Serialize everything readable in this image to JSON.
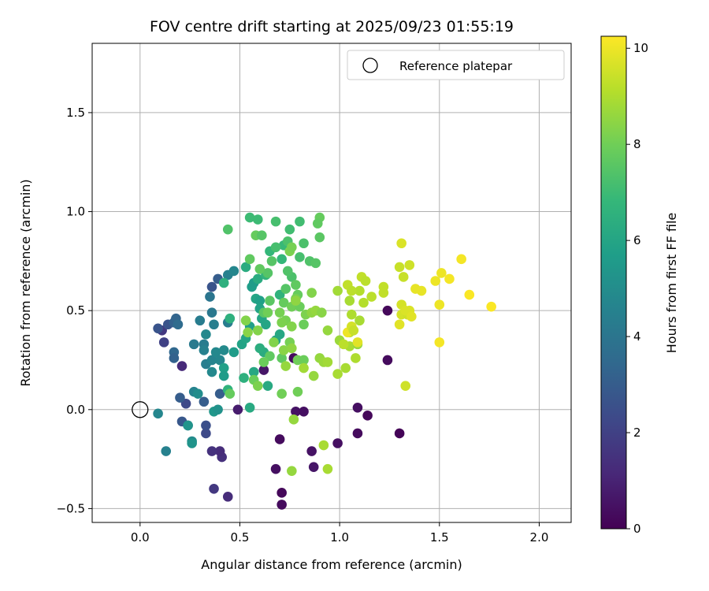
{
  "chart_data": {
    "type": "scatter",
    "title": "FOV centre drift starting at 2025/09/23 01:55:19",
    "xlabel": "Angular distance from reference (arcmin)",
    "ylabel": "Rotation from reference (arcmin)",
    "xlim": [
      -0.24,
      2.16
    ],
    "ylim": [
      -0.57,
      1.85
    ],
    "xticks": [
      0.0,
      0.5,
      1.0,
      1.5,
      2.0
    ],
    "xtick_labels": [
      "0.0",
      "0.5",
      "1.0",
      "1.5",
      "2.0"
    ],
    "yticks": [
      -0.5,
      0.0,
      0.5,
      1.0,
      1.5
    ],
    "ytick_labels": [
      "−0.5",
      "0.0",
      "0.5",
      "1.0",
      "1.5"
    ],
    "grid": true,
    "legend": {
      "position": "top-right",
      "entries": [
        "Reference platepar"
      ]
    },
    "reference_point": {
      "x": 0.0,
      "y": 0.0,
      "label": "Reference platepar"
    },
    "colorbar": {
      "label": "Hours from first FF file",
      "colormap": "viridis",
      "range": [
        0,
        10.25
      ],
      "ticks": [
        0,
        2,
        4,
        6,
        8,
        10
      ],
      "tick_labels": [
        "0",
        "2",
        "4",
        "6",
        "8",
        "10"
      ],
      "stops": [
        "#440154",
        "#482878",
        "#3e4989",
        "#31688e",
        "#26828e",
        "#1f9e89",
        "#35b779",
        "#6ece58",
        "#b5de2b",
        "#fde725"
      ]
    },
    "points": [
      [
        1.24,
        0.5,
        0.2
      ],
      [
        1.24,
        0.25,
        0.3
      ],
      [
        1.3,
        -0.12,
        0.1
      ],
      [
        1.14,
        -0.03,
        0.2
      ],
      [
        1.09,
        0.01,
        0.4
      ],
      [
        1.09,
        -0.12,
        0.3
      ],
      [
        0.99,
        -0.17,
        0.4
      ],
      [
        0.87,
        -0.29,
        0.6
      ],
      [
        0.86,
        -0.21,
        0.5
      ],
      [
        0.71,
        -0.42,
        0.2
      ],
      [
        0.71,
        -0.48,
        0.3
      ],
      [
        0.68,
        -0.3,
        0.4
      ],
      [
        0.7,
        -0.15,
        0.3
      ],
      [
        0.78,
        -0.01,
        0.5
      ],
      [
        0.82,
        -0.01,
        0.4
      ],
      [
        0.62,
        0.2,
        0.6
      ],
      [
        0.77,
        0.26,
        0.3
      ],
      [
        0.49,
        0.0,
        0.8
      ],
      [
        0.44,
        -0.44,
        1.3
      ],
      [
        0.41,
        -0.24,
        1.4
      ],
      [
        0.4,
        -0.21,
        1.3
      ],
      [
        0.36,
        -0.21,
        1.5
      ],
      [
        0.37,
        -0.4,
        1.7
      ],
      [
        0.21,
        0.22,
        1.2
      ],
      [
        0.11,
        0.4,
        1.7
      ],
      [
        0.12,
        0.34,
        2.0
      ],
      [
        0.33,
        -0.12,
        2.3
      ],
      [
        0.33,
        -0.08,
        2.5
      ],
      [
        0.24,
        -0.08,
        2.9
      ],
      [
        0.21,
        -0.06,
        2.8
      ],
      [
        0.23,
        0.03,
        2.3
      ],
      [
        0.2,
        0.06,
        3.0
      ],
      [
        0.32,
        0.04,
        3.0
      ],
      [
        0.4,
        0.08,
        3.0
      ],
      [
        0.36,
        0.62,
        2.7
      ],
      [
        0.39,
        0.66,
        3.0
      ],
      [
        0.09,
        0.41,
        2.7
      ],
      [
        0.14,
        0.43,
        2.7
      ],
      [
        0.17,
        0.44,
        3.2
      ],
      [
        0.18,
        0.46,
        3.3
      ],
      [
        0.19,
        0.43,
        3.6
      ],
      [
        0.17,
        0.29,
        3.4
      ],
      [
        0.17,
        0.26,
        3.2
      ],
      [
        0.27,
        0.33,
        4.2
      ],
      [
        0.32,
        0.33,
        4.3
      ],
      [
        0.32,
        0.3,
        4.5
      ],
      [
        0.33,
        0.23,
        4.4
      ],
      [
        0.36,
        0.25,
        4.6
      ],
      [
        0.3,
        0.45,
        4.3
      ],
      [
        0.36,
        0.49,
        4.1
      ],
      [
        0.35,
        0.57,
        4.0
      ],
      [
        0.37,
        0.43,
        4.4
      ],
      [
        0.36,
        0.19,
        4.8
      ],
      [
        0.38,
        0.29,
        4.8
      ],
      [
        0.33,
        0.38,
        4.8
      ],
      [
        0.4,
        0.25,
        4.7
      ],
      [
        0.42,
        0.3,
        4.9
      ],
      [
        0.44,
        0.44,
        4.3
      ],
      [
        0.44,
        0.68,
        4.5
      ],
      [
        0.47,
        0.7,
        4.7
      ],
      [
        0.27,
        0.09,
        4.6
      ],
      [
        0.29,
        0.08,
        5.0
      ],
      [
        0.26,
        -0.16,
        4.9
      ],
      [
        0.26,
        -0.17,
        5.3
      ],
      [
        0.24,
        -0.08,
        5.3
      ],
      [
        0.37,
        -0.01,
        5.4
      ],
      [
        0.39,
        0.0,
        5.2
      ],
      [
        0.13,
        -0.21,
        4.5
      ],
      [
        0.09,
        -0.02,
        4.7
      ],
      [
        0.47,
        0.29,
        5.6
      ],
      [
        0.51,
        0.33,
        5.9
      ],
      [
        0.53,
        0.36,
        6.0
      ],
      [
        0.55,
        0.42,
        5.8
      ],
      [
        0.56,
        0.62,
        5.7
      ],
      [
        0.57,
        0.64,
        5.6
      ],
      [
        0.58,
        0.56,
        6.0
      ],
      [
        0.6,
        0.55,
        5.8
      ],
      [
        0.6,
        0.51,
        5.9
      ],
      [
        0.61,
        0.46,
        6.0
      ],
      [
        0.63,
        0.43,
        6.0
      ],
      [
        0.57,
        0.19,
        6.1
      ],
      [
        0.62,
        0.29,
        6.3
      ],
      [
        0.64,
        0.12,
        6.2
      ],
      [
        0.55,
        0.01,
        6.2
      ],
      [
        0.53,
        0.72,
        6.3
      ],
      [
        0.59,
        0.66,
        6.3
      ],
      [
        0.68,
        0.35,
        6.0
      ],
      [
        0.7,
        0.38,
        6.1
      ],
      [
        0.6,
        0.31,
        6.4
      ],
      [
        0.42,
        0.64,
        6.5
      ],
      [
        0.45,
        0.46,
        6.5
      ],
      [
        0.42,
        0.21,
        5.8
      ],
      [
        0.42,
        0.17,
        5.6
      ],
      [
        0.44,
        0.1,
        6.6
      ],
      [
        0.52,
        0.16,
        6.5
      ],
      [
        0.63,
        0.68,
        6.7
      ],
      [
        0.65,
        0.8,
        6.8
      ],
      [
        0.7,
        0.58,
        6.6
      ],
      [
        0.72,
        0.83,
        6.9
      ],
      [
        0.71,
        0.76,
        6.8
      ],
      [
        0.55,
        0.97,
        7.0
      ],
      [
        0.59,
        0.96,
        7.0
      ],
      [
        0.68,
        0.95,
        7.2
      ],
      [
        0.75,
        0.91,
        7.1
      ],
      [
        0.8,
        0.95,
        7.1
      ],
      [
        0.74,
        0.85,
        7.3
      ],
      [
        0.68,
        0.82,
        7.2
      ],
      [
        0.82,
        0.84,
        7.3
      ],
      [
        0.85,
        0.75,
        7.4
      ],
      [
        0.8,
        0.77,
        7.2
      ],
      [
        0.76,
        0.67,
        7.3
      ],
      [
        0.74,
        0.7,
        7.4
      ],
      [
        0.66,
        0.75,
        7.5
      ],
      [
        0.64,
        0.69,
        7.5
      ],
      [
        0.73,
        0.61,
        7.5
      ],
      [
        0.65,
        0.55,
        7.6
      ],
      [
        0.62,
        0.49,
        7.6
      ],
      [
        0.55,
        0.76,
        7.7
      ],
      [
        0.6,
        0.71,
        7.7
      ],
      [
        0.58,
        0.88,
        7.8
      ],
      [
        0.88,
        0.74,
        7.5
      ],
      [
        0.9,
        0.87,
        7.6
      ],
      [
        0.9,
        0.97,
        7.8
      ],
      [
        0.89,
        0.94,
        7.7
      ],
      [
        0.78,
        0.63,
        7.7
      ],
      [
        0.79,
        0.58,
        7.8
      ],
      [
        0.72,
        0.54,
        7.8
      ],
      [
        0.71,
        0.26,
        7.7
      ],
      [
        0.65,
        0.27,
        7.7
      ],
      [
        0.62,
        0.24,
        7.9
      ],
      [
        0.57,
        0.15,
        7.9
      ],
      [
        0.76,
        0.52,
        8.0
      ],
      [
        0.79,
        0.25,
        8.0
      ],
      [
        0.73,
        0.45,
        8.1
      ],
      [
        0.75,
        0.34,
        8.1
      ],
      [
        0.82,
        0.25,
        7.9
      ],
      [
        0.82,
        0.43,
        7.9
      ],
      [
        0.8,
        0.52,
        7.9
      ],
      [
        0.83,
        0.48,
        8.2
      ],
      [
        0.78,
        0.56,
        8.1
      ],
      [
        0.7,
        0.49,
        8.1
      ],
      [
        0.71,
        0.44,
        8.2
      ],
      [
        0.76,
        0.42,
        8.3
      ],
      [
        0.75,
        0.8,
        8.2
      ],
      [
        0.76,
        0.82,
        8.1
      ],
      [
        0.64,
        0.49,
        8.0
      ],
      [
        0.59,
        0.4,
        8.3
      ],
      [
        0.53,
        0.45,
        8.3
      ],
      [
        0.54,
        0.39,
        8.4
      ],
      [
        0.59,
        0.12,
        8.2
      ],
      [
        0.71,
        0.08,
        8.0
      ],
      [
        0.79,
        0.09,
        8.0
      ],
      [
        0.45,
        0.08,
        7.8
      ],
      [
        0.44,
        0.91,
        7.4
      ],
      [
        0.61,
        0.88,
        7.5
      ],
      [
        0.67,
        0.34,
        8.3
      ],
      [
        0.72,
        0.3,
        8.4
      ],
      [
        0.78,
        0.55,
        8.5
      ],
      [
        0.86,
        0.59,
        8.3
      ],
      [
        0.86,
        0.49,
        8.5
      ],
      [
        0.88,
        0.5,
        8.6
      ],
      [
        0.91,
        0.49,
        8.4
      ],
      [
        0.94,
        0.4,
        8.6
      ],
      [
        0.9,
        0.26,
        8.6
      ],
      [
        0.92,
        0.24,
        8.7
      ],
      [
        0.94,
        0.24,
        8.8
      ],
      [
        0.87,
        0.17,
        8.6
      ],
      [
        0.82,
        0.21,
        8.8
      ],
      [
        0.76,
        0.31,
        8.5
      ],
      [
        0.73,
        0.22,
        8.6
      ],
      [
        0.77,
        -0.05,
        8.6
      ],
      [
        0.76,
        -0.31,
        8.6
      ],
      [
        0.92,
        -0.18,
        8.9
      ],
      [
        0.94,
        -0.3,
        8.9
      ],
      [
        0.99,
        0.6,
        8.8
      ],
      [
        1.0,
        0.35,
        8.7
      ],
      [
        0.99,
        0.18,
        8.9
      ],
      [
        1.03,
        0.21,
        8.9
      ],
      [
        1.05,
        0.32,
        8.9
      ],
      [
        1.08,
        0.26,
        9.0
      ],
      [
        1.02,
        0.33,
        9.2
      ],
      [
        1.05,
        0.39,
        9.1
      ],
      [
        1.06,
        0.48,
        9.0
      ],
      [
        1.05,
        0.55,
        8.9
      ],
      [
        1.1,
        0.45,
        8.9
      ],
      [
        1.09,
        0.33,
        8.6
      ],
      [
        1.12,
        0.54,
        9.1
      ],
      [
        1.1,
        0.6,
        9.1
      ],
      [
        1.11,
        0.67,
        9.3
      ],
      [
        1.13,
        0.65,
        9.2
      ],
      [
        1.16,
        0.57,
        9.2
      ],
      [
        1.04,
        0.63,
        9.3
      ],
      [
        1.06,
        0.6,
        9.2
      ],
      [
        1.22,
        0.62,
        9.3
      ],
      [
        1.22,
        0.59,
        9.3
      ],
      [
        1.3,
        0.72,
        9.4
      ],
      [
        1.32,
        0.67,
        9.4
      ],
      [
        1.35,
        0.73,
        9.5
      ],
      [
        1.31,
        0.53,
        9.6
      ],
      [
        1.31,
        0.48,
        9.6
      ],
      [
        1.34,
        0.48,
        9.5
      ],
      [
        1.33,
        0.5,
        9.7
      ],
      [
        1.35,
        0.5,
        9.7
      ],
      [
        1.36,
        0.47,
        9.8
      ],
      [
        1.3,
        0.43,
        9.8
      ],
      [
        1.33,
        0.12,
        9.5
      ],
      [
        1.38,
        0.61,
        9.9
      ],
      [
        1.41,
        0.6,
        9.9
      ],
      [
        1.31,
        0.84,
        9.7
      ],
      [
        1.48,
        0.65,
        10.0
      ],
      [
        1.51,
        0.69,
        10.0
      ],
      [
        1.55,
        0.66,
        10.1
      ],
      [
        1.5,
        0.53,
        10.0
      ],
      [
        1.5,
        0.34,
        10.1
      ],
      [
        1.61,
        0.76,
        10.1
      ],
      [
        1.65,
        0.58,
        10.2
      ],
      [
        1.76,
        0.52,
        10.2
      ],
      [
        1.04,
        0.39,
        10.0
      ],
      [
        1.06,
        0.42,
        9.6
      ],
      [
        1.09,
        0.34,
        9.8
      ],
      [
        1.07,
        0.4,
        9.4
      ]
    ]
  }
}
